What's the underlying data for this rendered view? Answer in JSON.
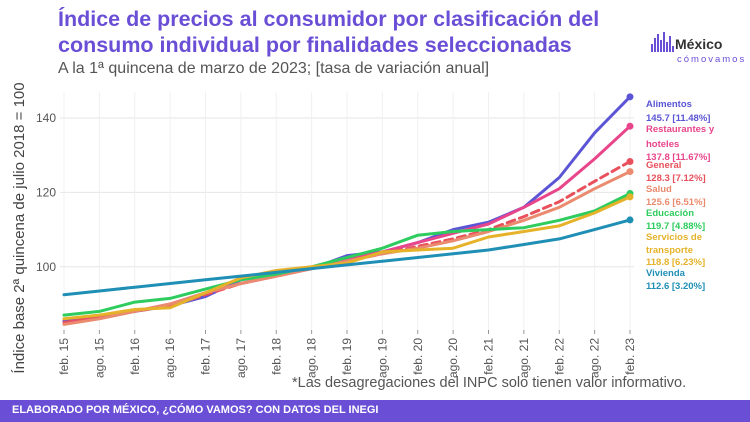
{
  "title": "Índice de precios al consumidor por clasificación del consumo individual por finalidades seleccionadas",
  "subtitle": "A la 1ª quincena de marzo de 2023; [tasa de variación anual]",
  "logo": {
    "name": "México",
    "tagline": "cómovamos"
  },
  "footnote": "*Las desagregaciones del INPC solo tienen valor informativo.",
  "footer": "ELABORADO POR MÉXICO, ¿CÓMO VAMOS? CON DATOS DEL INEGI",
  "chart_data": {
    "type": "line",
    "ylabel": "Índice base 2ª quincena de julio 2018 = 100",
    "ylim": [
      83,
      147
    ],
    "yticks": [
      100,
      120,
      140
    ],
    "x": [
      "feb. 15",
      "ago. 15",
      "feb. 16",
      "ago. 16",
      "feb. 17",
      "ago. 17",
      "feb. 18",
      "ago. 18",
      "feb. 19",
      "ago. 19",
      "feb. 20",
      "ago. 20",
      "feb. 21",
      "ago. 21",
      "feb. 22",
      "ago. 22",
      "feb. 23"
    ],
    "series": [
      {
        "name": "Alimentos",
        "label": "145.7 [11.48%]",
        "color": "#5b55d6",
        "dashed": false,
        "values": [
          85.5,
          86.5,
          88,
          89.5,
          92,
          96.5,
          98,
          99.5,
          103,
          104,
          106.5,
          110,
          112,
          116,
          124,
          136,
          145.7
        ]
      },
      {
        "name": "Restaurantes y hoteles",
        "label": "137.8 [11.67%]",
        "color": "#e8458b",
        "dashed": false,
        "values": [
          85,
          86.5,
          88,
          90,
          93,
          95.5,
          97.5,
          99.5,
          102,
          104,
          106.5,
          109,
          111.5,
          116,
          121,
          129,
          137.8
        ]
      },
      {
        "name": "General",
        "label": "128.3 [7.12%]",
        "color": "#e8505b",
        "dashed": true,
        "values": [
          85,
          86.5,
          88,
          89.5,
          92.5,
          95.5,
          97.5,
          99.5,
          101.5,
          103.5,
          105.5,
          107.5,
          110,
          113.5,
          117.5,
          123,
          128.3
        ]
      },
      {
        "name": "Salud",
        "label": "125.6 [6.51%]",
        "color": "#ea8a6e",
        "dashed": false,
        "values": [
          84.5,
          86,
          88,
          90,
          93,
          95.5,
          97.5,
          99.5,
          101.5,
          103.5,
          105,
          107,
          109.5,
          112.5,
          116,
          121,
          125.6
        ]
      },
      {
        "name": "Educación",
        "label": "119.7 [4.88%]",
        "color": "#2ecc5e",
        "dashed": false,
        "values": [
          87,
          88,
          90.5,
          91.5,
          94,
          96.5,
          98,
          100,
          102.5,
          105,
          108.5,
          109.5,
          110,
          110.5,
          112.5,
          115,
          119.7
        ]
      },
      {
        "name": "Servicios de transporte",
        "label": "118.8 [6.23%]",
        "color": "#e5b22a",
        "dashed": false,
        "values": [
          86,
          87,
          88.5,
          89,
          93,
          97,
          99,
          100,
          101,
          104,
          104.5,
          105,
          108,
          109.5,
          111,
          114.5,
          118.8
        ]
      },
      {
        "name": "Vivienda",
        "label": "112.6 [3.20%]",
        "color": "#1f8fb5",
        "dashed": false,
        "values": [
          92.5,
          93.5,
          94.5,
          95.5,
          96.5,
          97.5,
          98.5,
          99.5,
          100.5,
          101.5,
          102.5,
          103.5,
          104.5,
          106,
          107.5,
          110,
          112.6
        ]
      }
    ]
  }
}
